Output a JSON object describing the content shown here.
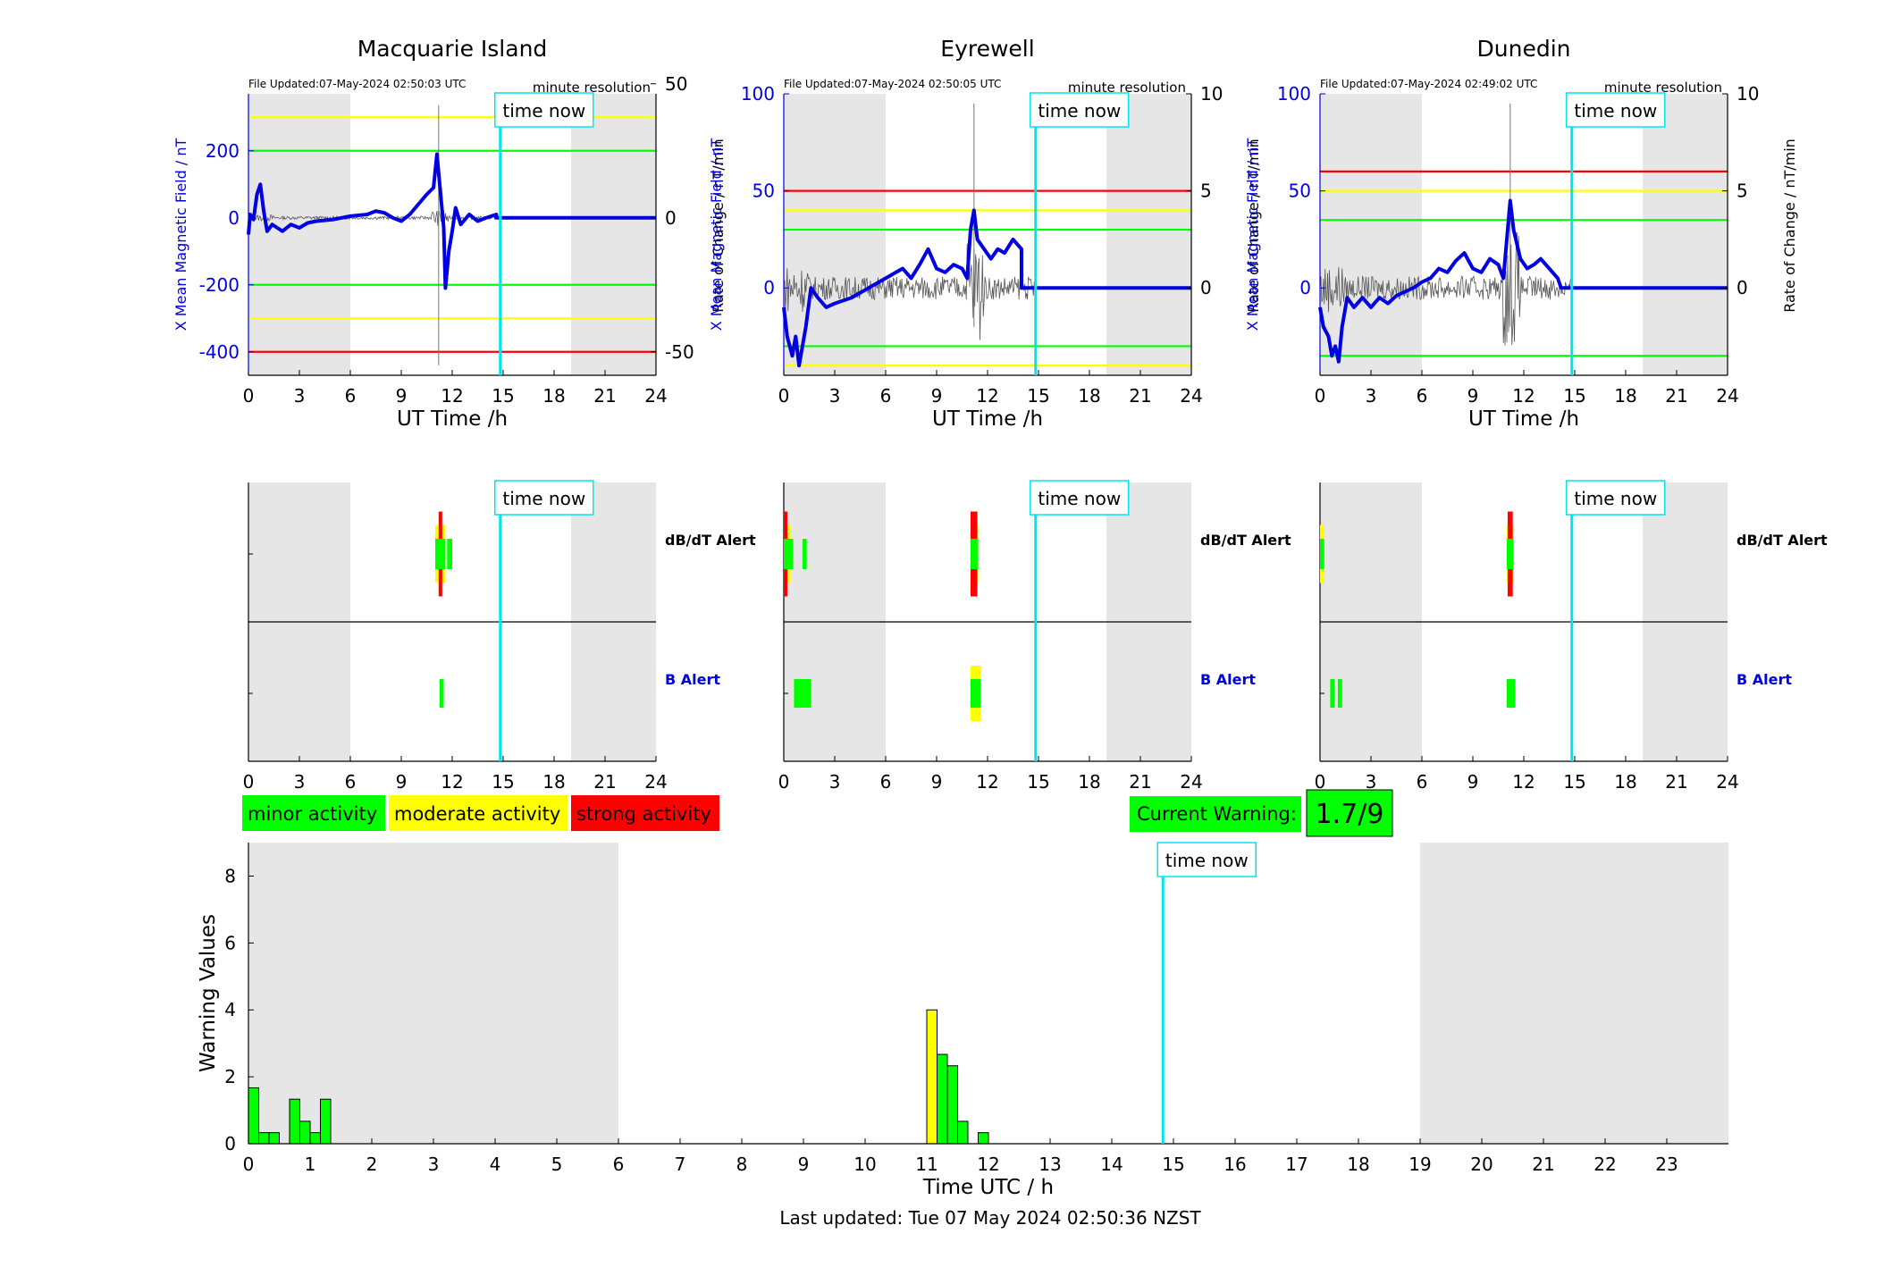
{
  "stations": [
    {
      "name": "Macquarie Island",
      "file_updated": "File Updated:07-May-2024 02:50:03 UTC",
      "resolution": "minute resolution",
      "left_ylabel": "X Mean Magnetic Field / nT",
      "right_ylabel": "Rate of Change / nT/min",
      "xlabel": "UT Time /h",
      "left_ylim": [
        -470,
        370
      ],
      "left_ticks": [
        "-400",
        "-200",
        "0",
        "200"
      ],
      "left_tick_values": [
        -400,
        -200,
        0,
        200
      ],
      "right_ylim": [
        -58.75,
        46.25
      ],
      "right_ticks": [
        "-50",
        "0",
        "50"
      ],
      "right_tick_values": [
        -50,
        0,
        50
      ],
      "thresholds": [
        {
          "value": 300,
          "color": "#ffff00"
        },
        {
          "value": 200,
          "color": "#00ff00"
        },
        {
          "value": -200,
          "color": "#00ff00"
        },
        {
          "value": -300,
          "color": "#ffff00"
        },
        {
          "value": -400,
          "color": "#ff0000"
        }
      ],
      "field_series": [
        [
          0,
          -50
        ],
        [
          0.1,
          10
        ],
        [
          0.3,
          -5
        ],
        [
          0.5,
          70
        ],
        [
          0.7,
          100
        ],
        [
          0.9,
          20
        ],
        [
          1.1,
          -40
        ],
        [
          1.4,
          -20
        ],
        [
          1.7,
          -30
        ],
        [
          2,
          -40
        ],
        [
          2.5,
          -20
        ],
        [
          3,
          -30
        ],
        [
          3.5,
          -15
        ],
        [
          4,
          -10
        ],
        [
          5,
          -5
        ],
        [
          6,
          5
        ],
        [
          7,
          10
        ],
        [
          7.5,
          20
        ],
        [
          8,
          15
        ],
        [
          8.5,
          0
        ],
        [
          9,
          -10
        ],
        [
          9.5,
          10
        ],
        [
          10,
          40
        ],
        [
          10.5,
          70
        ],
        [
          10.9,
          90
        ],
        [
          11.1,
          190
        ],
        [
          11.3,
          80
        ],
        [
          11.5,
          -30
        ],
        [
          11.6,
          -210
        ],
        [
          11.8,
          -100
        ],
        [
          12,
          -40
        ],
        [
          12.2,
          30
        ],
        [
          12.5,
          -20
        ],
        [
          13,
          10
        ],
        [
          13.5,
          -10
        ],
        [
          14,
          0
        ],
        [
          14.6,
          10
        ],
        [
          14.6,
          0
        ],
        [
          24,
          0
        ]
      ],
      "alerts_dbdt": [
        {
          "start": 11.0,
          "end": 11.6,
          "color": "#ffff00"
        },
        {
          "start": 11.2,
          "end": 11.4,
          "color": "#ff0000"
        },
        {
          "start": 11.0,
          "end": 11.6,
          "color": "#00ff00",
          "mid": true
        },
        {
          "start": 11.7,
          "end": 12.0,
          "color": "#00ff00",
          "mid": true
        }
      ],
      "alerts_b": [
        {
          "start": 11.25,
          "end": 11.5,
          "color": "#00ff00"
        }
      ]
    },
    {
      "name": "Eyrewell",
      "file_updated": "File Updated:07-May-2024 02:50:05 UTC",
      "resolution": "minute resolution",
      "left_ylabel": "X Mean Magnetic Field / nT",
      "right_ylabel": "Rate of Change / nT/min",
      "xlabel": "UT Time /h",
      "left_ylim": [
        -45,
        100
      ],
      "left_ticks": [
        "0",
        "50",
        "100"
      ],
      "left_tick_values": [
        0,
        50,
        100
      ],
      "right_ylim": [
        -4.5,
        10
      ],
      "right_ticks": [
        "0",
        "5",
        "10"
      ],
      "right_tick_values": [
        0,
        5,
        10
      ],
      "thresholds": [
        {
          "value": 50,
          "color": "#ff0000"
        },
        {
          "value": 40,
          "color": "#ffff00"
        },
        {
          "value": 30,
          "color": "#00ff00"
        },
        {
          "value": -30,
          "color": "#00ff00"
        },
        {
          "value": -40,
          "color": "#ffff00"
        }
      ],
      "field_series": [
        [
          0,
          -10
        ],
        [
          0.2,
          -25
        ],
        [
          0.5,
          -35
        ],
        [
          0.7,
          -25
        ],
        [
          0.9,
          -40
        ],
        [
          1.1,
          -30
        ],
        [
          1.3,
          -20
        ],
        [
          1.6,
          0
        ],
        [
          2,
          -5
        ],
        [
          2.5,
          -10
        ],
        [
          3,
          -8
        ],
        [
          4,
          -5
        ],
        [
          5,
          0
        ],
        [
          6,
          5
        ],
        [
          7,
          10
        ],
        [
          7.5,
          5
        ],
        [
          8,
          12
        ],
        [
          8.5,
          20
        ],
        [
          9,
          10
        ],
        [
          9.5,
          8
        ],
        [
          10,
          12
        ],
        [
          10.5,
          10
        ],
        [
          10.8,
          5
        ],
        [
          11,
          30
        ],
        [
          11.2,
          40
        ],
        [
          11.4,
          25
        ],
        [
          11.8,
          20
        ],
        [
          12.2,
          15
        ],
        [
          12.6,
          20
        ],
        [
          13,
          18
        ],
        [
          13.5,
          25
        ],
        [
          14,
          20
        ],
        [
          14,
          0
        ],
        [
          24,
          0
        ]
      ],
      "alerts_dbdt": [
        {
          "start": 0.0,
          "end": 0.4,
          "color": "#ffff00"
        },
        {
          "start": 0.0,
          "end": 0.2,
          "color": "#ff0000"
        },
        {
          "start": 0.0,
          "end": 0.55,
          "color": "#00ff00",
          "mid": true
        },
        {
          "start": 1.1,
          "end": 1.35,
          "color": "#00ff00",
          "mid": true
        },
        {
          "start": 11.0,
          "end": 11.45,
          "color": "#ffff00"
        },
        {
          "start": 11.0,
          "end": 11.4,
          "color": "#ff0000"
        },
        {
          "start": 11.0,
          "end": 11.45,
          "color": "#00ff00",
          "mid": true
        }
      ],
      "alerts_b": [
        {
          "start": 0.6,
          "end": 1.6,
          "color": "#00ff00"
        },
        {
          "start": 11.0,
          "end": 11.6,
          "color": "#ffff00"
        },
        {
          "start": 11.0,
          "end": 11.6,
          "color": "#00ff00",
          "mid": true
        }
      ]
    },
    {
      "name": "Dunedin",
      "file_updated": "File Updated:07-May-2024 02:49:02 UTC",
      "resolution": "minute resolution",
      "left_ylabel": "X Mean Magnetic Field / nT",
      "right_ylabel": "Rate of Change / nT/min",
      "xlabel": "UT Time /h",
      "left_ylim": [
        -45,
        100
      ],
      "left_ticks": [
        "0",
        "50",
        "100"
      ],
      "left_tick_values": [
        0,
        50,
        100
      ],
      "right_ylim": [
        -4.5,
        10
      ],
      "right_ticks": [
        "0",
        "5",
        "10"
      ],
      "right_tick_values": [
        0,
        5,
        10
      ],
      "thresholds": [
        {
          "value": 60,
          "color": "#ff0000"
        },
        {
          "value": 50,
          "color": "#ffff00"
        },
        {
          "value": 35,
          "color": "#00ff00"
        },
        {
          "value": -35,
          "color": "#00ff00"
        }
      ],
      "field_series": [
        [
          0,
          -10
        ],
        [
          0.2,
          -20
        ],
        [
          0.5,
          -25
        ],
        [
          0.7,
          -35
        ],
        [
          0.9,
          -30
        ],
        [
          1.1,
          -38
        ],
        [
          1.3,
          -20
        ],
        [
          1.6,
          -5
        ],
        [
          2,
          -10
        ],
        [
          2.5,
          -5
        ],
        [
          3,
          -10
        ],
        [
          3.5,
          -5
        ],
        [
          4,
          -8
        ],
        [
          4.5,
          -4
        ],
        [
          5,
          -2
        ],
        [
          5.5,
          0
        ],
        [
          6,
          3
        ],
        [
          6.5,
          5
        ],
        [
          7,
          10
        ],
        [
          7.5,
          8
        ],
        [
          8,
          14
        ],
        [
          8.5,
          18
        ],
        [
          9,
          10
        ],
        [
          9.5,
          8
        ],
        [
          10,
          15
        ],
        [
          10.5,
          12
        ],
        [
          10.8,
          5
        ],
        [
          11,
          25
        ],
        [
          11.2,
          45
        ],
        [
          11.4,
          30
        ],
        [
          11.8,
          15
        ],
        [
          12.2,
          10
        ],
        [
          12.6,
          12
        ],
        [
          13,
          15
        ],
        [
          13.5,
          10
        ],
        [
          14,
          5
        ],
        [
          14.2,
          0
        ],
        [
          24,
          0
        ]
      ],
      "alerts_dbdt": [
        {
          "start": 0.0,
          "end": 0.25,
          "color": "#ffff00"
        },
        {
          "start": 0.0,
          "end": 0.25,
          "color": "#00ff00",
          "mid": true
        },
        {
          "start": 11.0,
          "end": 11.4,
          "color": "#ffff00"
        },
        {
          "start": 11.05,
          "end": 11.35,
          "color": "#ff0000"
        },
        {
          "start": 11.0,
          "end": 11.4,
          "color": "#00ff00",
          "mid": true
        }
      ],
      "alerts_b": [
        {
          "start": 0.6,
          "end": 0.85,
          "color": "#00ff00"
        },
        {
          "start": 1.05,
          "end": 1.3,
          "color": "#00ff00"
        },
        {
          "start": 11.0,
          "end": 11.5,
          "color": "#00ff00"
        }
      ]
    }
  ],
  "time_now": 14.83,
  "time_now_label": "time now",
  "x_ticks_3h": [
    "0",
    "3",
    "6",
    "9",
    "12",
    "15",
    "18",
    "21",
    "24"
  ],
  "night_shading": [
    [
      0,
      6
    ],
    [
      19,
      24
    ]
  ],
  "alert_labels": {
    "dbdt": "dB/dT Alert",
    "b": "B Alert"
  },
  "legend": [
    {
      "label": "minor activity",
      "color": "#00ff00"
    },
    {
      "label": "moderate activity",
      "color": "#ffff00"
    },
    {
      "label": "strong activity",
      "color": "#ff0000"
    }
  ],
  "current_warning": {
    "label": "Current Warning:",
    "value": "1.7/9",
    "color": "#00ff00"
  },
  "chart_data": {
    "type": "bar",
    "xlabel": "Time UTC / h",
    "ylabel": "Warning Values",
    "xlim": [
      0,
      24
    ],
    "ylim": [
      0,
      9
    ],
    "x_ticks": [
      "0",
      "1",
      "2",
      "3",
      "4",
      "5",
      "6",
      "7",
      "8",
      "9",
      "10",
      "11",
      "12",
      "13",
      "14",
      "15",
      "16",
      "17",
      "18",
      "19",
      "20",
      "21",
      "22",
      "23"
    ],
    "y_ticks": [
      "0",
      "2",
      "4",
      "6",
      "8"
    ],
    "bar_width_h": 0.16667,
    "bars": [
      {
        "x": 0.0,
        "value": 1.67,
        "color": "#00ff00"
      },
      {
        "x": 0.1667,
        "value": 0.33,
        "color": "#00ff00"
      },
      {
        "x": 0.3333,
        "value": 0.33,
        "color": "#00ff00"
      },
      {
        "x": 0.6667,
        "value": 1.33,
        "color": "#00ff00"
      },
      {
        "x": 0.8333,
        "value": 0.67,
        "color": "#00ff00"
      },
      {
        "x": 1.0,
        "value": 0.33,
        "color": "#00ff00"
      },
      {
        "x": 1.1667,
        "value": 1.33,
        "color": "#00ff00"
      },
      {
        "x": 11.0,
        "value": 4.0,
        "color": "#ffff00"
      },
      {
        "x": 11.1667,
        "value": 2.67,
        "color": "#00ff00"
      },
      {
        "x": 11.3333,
        "value": 2.33,
        "color": "#00ff00"
      },
      {
        "x": 11.5,
        "value": 0.67,
        "color": "#00ff00"
      },
      {
        "x": 11.8333,
        "value": 0.33,
        "color": "#00ff00"
      }
    ]
  },
  "last_updated": "Last updated: Tue 07 May 2024 02:50:36 NZST"
}
